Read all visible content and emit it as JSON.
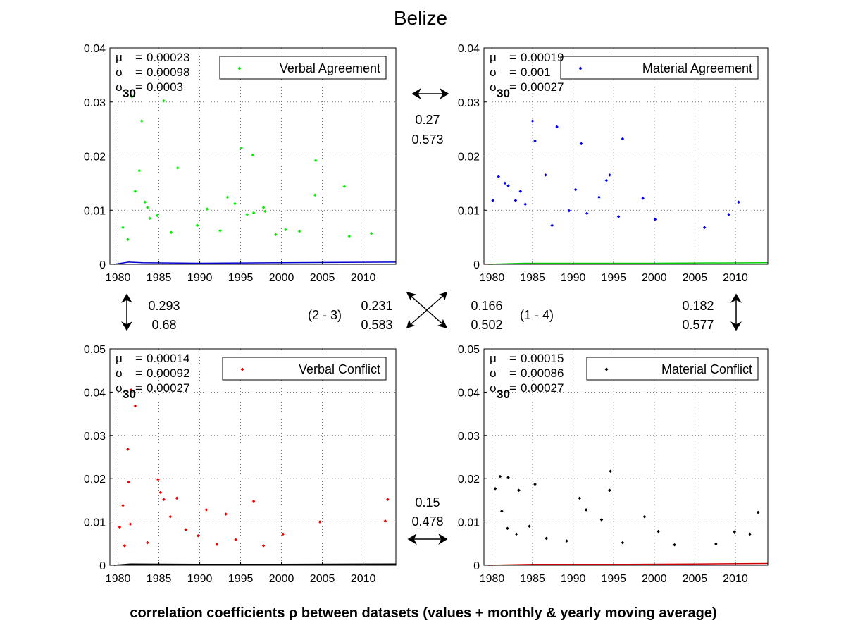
{
  "figure": {
    "title": "Belize",
    "footer": "correlation coefficients ρ between datasets (values + monthly & yearly moving average)"
  },
  "chart_data": [
    {
      "type": "scatter",
      "legend": "Verbal Agreement",
      "color": "#00ee00",
      "xlim": [
        1979,
        2014
      ],
      "ylim": [
        0,
        0.04
      ],
      "xticks": [
        "1980",
        "1985",
        "1990",
        "1995",
        "2000",
        "2005",
        "2010"
      ],
      "yticks": [
        "0",
        "0.01",
        "0.02",
        "0.03",
        "0.04"
      ],
      "stats": {
        "mu": "0.00023",
        "sigma": "0.00098",
        "sigma30": "0.0003"
      },
      "points": [
        [
          1981.7,
          0.031
        ],
        [
          1982.9,
          0.0265
        ],
        [
          1985.6,
          0.0302
        ],
        [
          1987.3,
          0.0178
        ],
        [
          1982.6,
          0.0173
        ],
        [
          1995.1,
          0.0215
        ],
        [
          1996.5,
          0.0202
        ],
        [
          2004.2,
          0.0192
        ],
        [
          2007.7,
          0.0144
        ],
        [
          2004.1,
          0.0128
        ],
        [
          1993.4,
          0.0124
        ],
        [
          1994.3,
          0.0112
        ],
        [
          1982.1,
          0.0135
        ],
        [
          1983.3,
          0.0115
        ],
        [
          1983.6,
          0.0105
        ],
        [
          1990.9,
          0.0102
        ],
        [
          1997.8,
          0.0105
        ],
        [
          1998.0,
          0.0098
        ],
        [
          1995.8,
          0.0092
        ],
        [
          1996.6,
          0.0095
        ],
        [
          1980.6,
          0.0068
        ],
        [
          1989.7,
          0.0072
        ],
        [
          2000.5,
          0.0064
        ],
        [
          2002.2,
          0.0061
        ],
        [
          2011.0,
          0.0057
        ],
        [
          1986.5,
          0.0059
        ],
        [
          1984.8,
          0.009
        ],
        [
          1983.9,
          0.0085
        ],
        [
          1992.5,
          0.0062
        ],
        [
          1981.2,
          0.0046
        ],
        [
          2008.3,
          0.0052
        ],
        [
          1999.3,
          0.0055
        ]
      ],
      "baselines": [
        {
          "name": "monthly moving average",
          "color": "#0000cc",
          "values": [
            [
              1979.5,
              0
            ],
            [
              1981.3,
              0.0004
            ],
            [
              1983,
              0.0003
            ],
            [
              1990,
              0.0002
            ],
            [
              2000,
              0.0003
            ],
            [
              2014,
              0.0004
            ]
          ]
        }
      ]
    },
    {
      "type": "scatter",
      "legend": "Material Agreement",
      "color": "#0000ee",
      "xlim": [
        1979,
        2014
      ],
      "ylim": [
        0,
        0.04
      ],
      "xticks": [
        "1980",
        "1985",
        "1990",
        "1995",
        "2000",
        "2005",
        "2010"
      ],
      "yticks": [
        "0",
        "0.01",
        "0.02",
        "0.03",
        "0.04"
      ],
      "stats": {
        "mu": "0.00019",
        "sigma": "0.001",
        "sigma30": "0.00027"
      },
      "points": [
        [
          1985.0,
          0.0265
        ],
        [
          1985.3,
          0.0228
        ],
        [
          1988.0,
          0.0254
        ],
        [
          1991.0,
          0.0223
        ],
        [
          1996.1,
          0.0232
        ],
        [
          1994.5,
          0.0165
        ],
        [
          1994.1,
          0.0155
        ],
        [
          1980.8,
          0.0162
        ],
        [
          1981.6,
          0.015
        ],
        [
          1982.0,
          0.0145
        ],
        [
          1983.5,
          0.0135
        ],
        [
          1982.9,
          0.0118
        ],
        [
          1986.6,
          0.0165
        ],
        [
          1990.3,
          0.0138
        ],
        [
          1993.2,
          0.0124
        ],
        [
          1980.1,
          0.0118
        ],
        [
          2010.4,
          0.0115
        ],
        [
          1998.6,
          0.0122
        ],
        [
          1984.1,
          0.0111
        ],
        [
          1989.5,
          0.0099
        ],
        [
          1991.7,
          0.0094
        ],
        [
          2009.2,
          0.0092
        ],
        [
          1995.6,
          0.0088
        ],
        [
          2000.1,
          0.0083
        ],
        [
          1987.4,
          0.0072
        ],
        [
          2006.2,
          0.0068
        ]
      ],
      "baselines": [
        {
          "name": "monthly moving average",
          "color": "#00cc00",
          "values": [
            [
              1979.5,
              0
            ],
            [
              1984,
              0.0002
            ],
            [
              1990,
              0.0002
            ],
            [
              2000,
              0.0002
            ],
            [
              2014,
              0.0003
            ]
          ]
        }
      ]
    },
    {
      "type": "scatter",
      "legend": "Verbal Conflict",
      "color": "#ee0000",
      "xlim": [
        1979,
        2014
      ],
      "ylim": [
        0,
        0.05
      ],
      "xticks": [
        "1980",
        "1985",
        "1990",
        "1995",
        "2000",
        "2005",
        "2010"
      ],
      "yticks": [
        "0",
        "0.01",
        "0.02",
        "0.03",
        "0.04",
        "0.05"
      ],
      "stats": {
        "mu": "0.00014",
        "sigma": "0.00092",
        "sigma30": "0.00027"
      },
      "points": [
        [
          1981.6,
          0.0405
        ],
        [
          1982.1,
          0.0368
        ],
        [
          1981.2,
          0.0268
        ],
        [
          1981.3,
          0.0192
        ],
        [
          1984.9,
          0.0198
        ],
        [
          1985.2,
          0.0168
        ],
        [
          1985.6,
          0.0152
        ],
        [
          1987.2,
          0.0155
        ],
        [
          1980.6,
          0.0138
        ],
        [
          1981.5,
          0.0095
        ],
        [
          1990.8,
          0.0128
        ],
        [
          1993.2,
          0.0118
        ],
        [
          1996.6,
          0.0148
        ],
        [
          2013.0,
          0.0152
        ],
        [
          2012.7,
          0.0102
        ],
        [
          2004.7,
          0.01
        ],
        [
          1980.2,
          0.0088
        ],
        [
          1986.4,
          0.0112
        ],
        [
          1988.3,
          0.0082
        ],
        [
          1989.8,
          0.0068
        ],
        [
          1994.4,
          0.0059
        ],
        [
          2000.2,
          0.0072
        ],
        [
          1997.8,
          0.0045
        ],
        [
          1983.6,
          0.0052
        ],
        [
          1980.8,
          0.0045
        ],
        [
          1992.1,
          0.0048
        ]
      ],
      "baselines": [
        {
          "name": "monthly moving average",
          "color": "#000000",
          "values": [
            [
              1979.5,
              0
            ],
            [
              1981.5,
              0.0003
            ],
            [
              1990,
              0.0002
            ],
            [
              2000,
              0.0002
            ],
            [
              2014,
              0.0003
            ]
          ]
        }
      ]
    },
    {
      "type": "scatter",
      "legend": "Material Conflict",
      "color": "#000000",
      "xlim": [
        1979,
        2014
      ],
      "ylim": [
        0,
        0.05
      ],
      "xticks": [
        "1980",
        "1985",
        "1990",
        "1995",
        "2000",
        "2005",
        "2010"
      ],
      "yticks": [
        "0",
        "0.01",
        "0.02",
        "0.03",
        "0.04",
        "0.05"
      ],
      "stats": {
        "mu": "0.00015",
        "sigma": "0.00086",
        "sigma30": "0.00027"
      },
      "points": [
        [
          1994.6,
          0.0217
        ],
        [
          1994.5,
          0.0173
        ],
        [
          1981.0,
          0.0205
        ],
        [
          1982.0,
          0.0203
        ],
        [
          1983.3,
          0.0173
        ],
        [
          1980.4,
          0.0177
        ],
        [
          1981.2,
          0.0125
        ],
        [
          1985.3,
          0.0187
        ],
        [
          1990.8,
          0.0155
        ],
        [
          1991.6,
          0.0128
        ],
        [
          1993.5,
          0.0105
        ],
        [
          1998.8,
          0.0112
        ],
        [
          2012.8,
          0.0122
        ],
        [
          2009.9,
          0.0077
        ],
        [
          2011.8,
          0.0072
        ],
        [
          1984.6,
          0.009
        ],
        [
          2000.5,
          0.0078
        ],
        [
          1981.9,
          0.0085
        ],
        [
          1986.7,
          0.0062
        ],
        [
          1989.2,
          0.0056
        ],
        [
          1996.1,
          0.0052
        ],
        [
          2002.5,
          0.0047
        ],
        [
          2007.6,
          0.0049
        ],
        [
          1983.0,
          0.0072
        ]
      ],
      "baselines": [
        {
          "name": "monthly moving average",
          "color": "#cc0000",
          "values": [
            [
              1979.5,
              0
            ],
            [
              1985,
              0.0002
            ],
            [
              1995,
              0.0002
            ],
            [
              2005,
              0.0003
            ],
            [
              2014,
              0.0004
            ]
          ]
        }
      ]
    }
  ],
  "correlations": {
    "top": {
      "rho": "0.27",
      "rho_avg": "0.573"
    },
    "left": {
      "rho": "0.293",
      "rho_avg": "0.68"
    },
    "right": {
      "rho": "0.182",
      "rho_avg": "0.577"
    },
    "diag_2_3": {
      "label": "(2 - 3)",
      "rho": "0.231",
      "rho_avg": "0.583"
    },
    "diag_1_4": {
      "label": "(1 - 4)",
      "rho": "0.166",
      "rho_avg": "0.502"
    },
    "bottom": {
      "rho": "0.15",
      "rho_avg": "0.478"
    }
  }
}
